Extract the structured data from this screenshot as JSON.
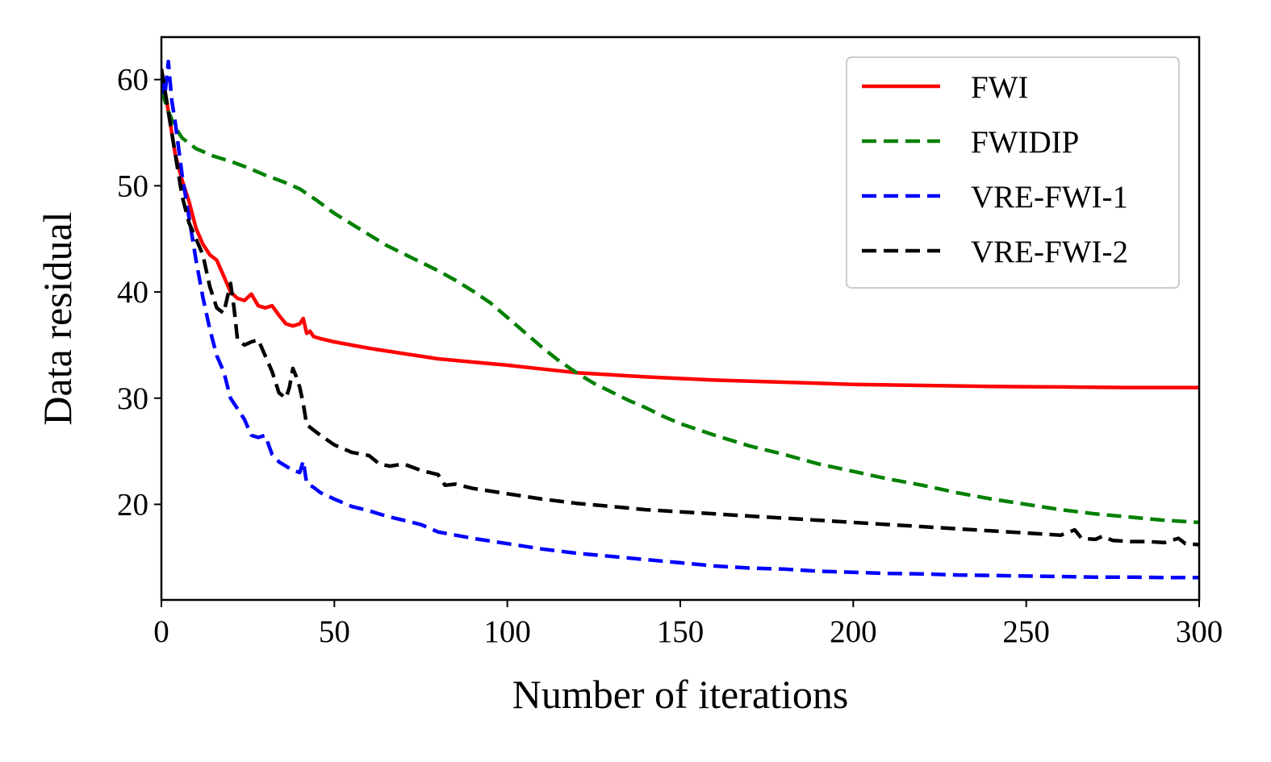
{
  "chart_data": {
    "type": "line",
    "title": "",
    "xlabel": "Number of iterations",
    "ylabel": "Data residual",
    "xlim": [
      0,
      300
    ],
    "ylim": [
      11,
      64
    ],
    "xticks": [
      0,
      50,
      100,
      150,
      200,
      250,
      300
    ],
    "yticks": [
      20,
      30,
      40,
      50,
      60
    ],
    "grid": false,
    "legend_position": "top-right",
    "series": [
      {
        "name": "FWI",
        "color": "#ff0000",
        "dash": "solid",
        "x": [
          0,
          2,
          4,
          6,
          8,
          10,
          12,
          14,
          16,
          18,
          20,
          22,
          24,
          26,
          28,
          30,
          32,
          34,
          36,
          38,
          40,
          41,
          42,
          43,
          44,
          46,
          50,
          60,
          70,
          80,
          90,
          100,
          120,
          140,
          160,
          180,
          200,
          220,
          240,
          260,
          280,
          300
        ],
        "y": [
          61,
          57,
          53,
          50.5,
          48.5,
          46,
          44.5,
          43.5,
          43,
          41.5,
          40,
          39.4,
          39.2,
          39.8,
          38.7,
          38.5,
          38.7,
          37.8,
          37.0,
          36.8,
          37.0,
          37.5,
          36.1,
          36.3,
          35.8,
          35.6,
          35.3,
          34.7,
          34.2,
          33.7,
          33.4,
          33.1,
          32.4,
          32.0,
          31.7,
          31.5,
          31.3,
          31.2,
          31.1,
          31.05,
          31.0,
          31.0
        ]
      },
      {
        "name": "FWIDIP",
        "color": "#008000",
        "dash": "dashed",
        "x": [
          0,
          2,
          4,
          6,
          8,
          10,
          15,
          20,
          25,
          30,
          35,
          40,
          45,
          50,
          55,
          60,
          65,
          70,
          75,
          80,
          85,
          90,
          95,
          100,
          105,
          110,
          115,
          120,
          125,
          130,
          135,
          140,
          145,
          150,
          160,
          170,
          180,
          190,
          200,
          210,
          220,
          230,
          240,
          250,
          260,
          270,
          280,
          290,
          300
        ],
        "y": [
          59,
          57,
          55.5,
          54.5,
          54,
          53.5,
          52.8,
          52.3,
          51.7,
          51,
          50.4,
          49.7,
          48.6,
          47.4,
          46.4,
          45.4,
          44.4,
          43.6,
          42.8,
          42,
          41.1,
          40.1,
          39,
          37.6,
          36.2,
          34.8,
          33.5,
          32.4,
          31.4,
          30.6,
          29.8,
          29.1,
          28.3,
          27.6,
          26.5,
          25.5,
          24.7,
          23.8,
          23.1,
          22.4,
          21.8,
          21.1,
          20.5,
          20,
          19.5,
          19.1,
          18.8,
          18.5,
          18.3
        ]
      },
      {
        "name": "VRE-FWI-1",
        "color": "#0000ff",
        "dash": "dashed",
        "x": [
          0,
          1,
          2,
          3,
          4,
          6,
          8,
          10,
          12,
          14,
          16,
          18,
          20,
          22,
          24,
          26,
          28,
          30,
          32,
          34,
          36,
          38,
          40,
          41,
          42,
          44,
          46,
          50,
          55,
          60,
          65,
          70,
          75,
          80,
          90,
          100,
          110,
          120,
          130,
          140,
          150,
          160,
          170,
          180,
          190,
          200,
          210,
          220,
          230,
          240,
          250,
          260,
          270,
          280,
          290,
          300
        ],
        "y": [
          60,
          58.5,
          61.7,
          58,
          56,
          51,
          47,
          43,
          39.5,
          36.5,
          34,
          32.5,
          30,
          29,
          28,
          26.5,
          26.3,
          26.5,
          24.7,
          24,
          23.6,
          23.2,
          23,
          24.1,
          22,
          21.6,
          21.1,
          20.5,
          19.8,
          19.4,
          18.9,
          18.5,
          18.1,
          17.4,
          16.8,
          16.3,
          15.8,
          15.4,
          15.1,
          14.8,
          14.5,
          14.2,
          14.0,
          13.9,
          13.7,
          13.6,
          13.5,
          13.45,
          13.35,
          13.3,
          13.25,
          13.2,
          13.15,
          13.15,
          13.1,
          13.1
        ]
      },
      {
        "name": "VRE-FWI-2",
        "color": "#000000",
        "dash": "dashed",
        "x": [
          0,
          2,
          4,
          6,
          8,
          10,
          12,
          14,
          16,
          18,
          20,
          21,
          22,
          24,
          26,
          28,
          30,
          32,
          34,
          36,
          37,
          38,
          39,
          40,
          41,
          42,
          44,
          46,
          50,
          55,
          60,
          63,
          66,
          70,
          75,
          80,
          82,
          85,
          90,
          100,
          110,
          120,
          130,
          140,
          150,
          160,
          170,
          180,
          190,
          200,
          210,
          220,
          230,
          240,
          250,
          260,
          264,
          266,
          270,
          272,
          275,
          280,
          285,
          290,
          294,
          296,
          300
        ],
        "y": [
          61,
          57,
          53,
          49,
          46.5,
          45,
          43.5,
          40.5,
          38.5,
          38,
          40.8,
          38.5,
          35.5,
          35,
          35.3,
          35.5,
          34,
          32.5,
          30.5,
          30,
          31,
          32.8,
          32,
          31,
          29.5,
          27.5,
          27,
          26.5,
          25.6,
          24.9,
          24.6,
          23.8,
          23.6,
          23.8,
          23.2,
          22.8,
          21.8,
          21.9,
          21.5,
          21.0,
          20.5,
          20.1,
          19.8,
          19.5,
          19.3,
          19.1,
          18.9,
          18.7,
          18.5,
          18.3,
          18.1,
          17.9,
          17.7,
          17.5,
          17.3,
          17.1,
          17.6,
          16.8,
          16.7,
          17.0,
          16.6,
          16.5,
          16.5,
          16.4,
          16.8,
          16.3,
          16.2
        ]
      }
    ]
  }
}
